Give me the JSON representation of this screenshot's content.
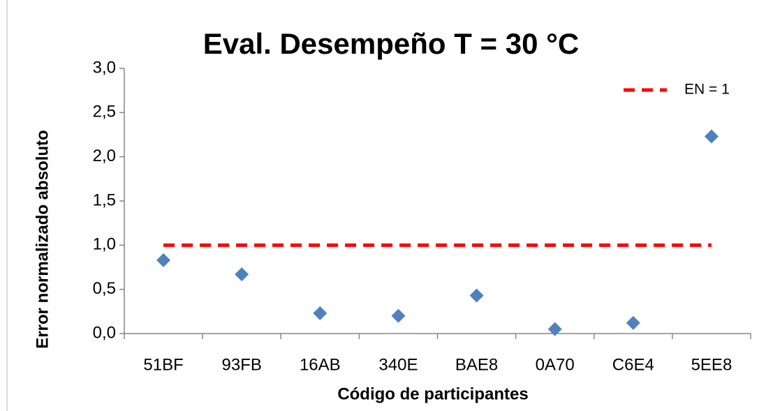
{
  "chart_data": {
    "type": "scatter",
    "title": "Eval. Desempeño  T = 30 °C",
    "x_label": "Código de participantes",
    "y_label": "Error normalizado absoluto",
    "categories": [
      "51BF",
      "93FB",
      "16AB",
      "340E",
      "BAE8",
      "0A70",
      "C6E4",
      "5EE8"
    ],
    "series": [
      {
        "color": "#4f81bd",
        "marker": "diamond",
        "values": [
          0.83,
          0.67,
          0.23,
          0.2,
          0.43,
          0.05,
          0.12,
          2.23
        ]
      },
      {
        "name": "EN = 1",
        "color": "#ff0000",
        "line": "dashed",
        "values": [
          1,
          1,
          1,
          1,
          1,
          1,
          1,
          1
        ]
      }
    ],
    "ylim": [
      0,
      3
    ],
    "yticks": [
      {
        "value": 0,
        "label": "0,0"
      },
      {
        "value": 0.5,
        "label": "0,5"
      },
      {
        "value": 1,
        "label": "1,0"
      },
      {
        "value": 1.5,
        "label": "1,5"
      },
      {
        "value": 2,
        "label": "2,0"
      },
      {
        "value": 2.5,
        "label": "2,5"
      },
      {
        "value": 3,
        "label": "3,0"
      }
    ],
    "grid": false,
    "legend": "top-right"
  }
}
